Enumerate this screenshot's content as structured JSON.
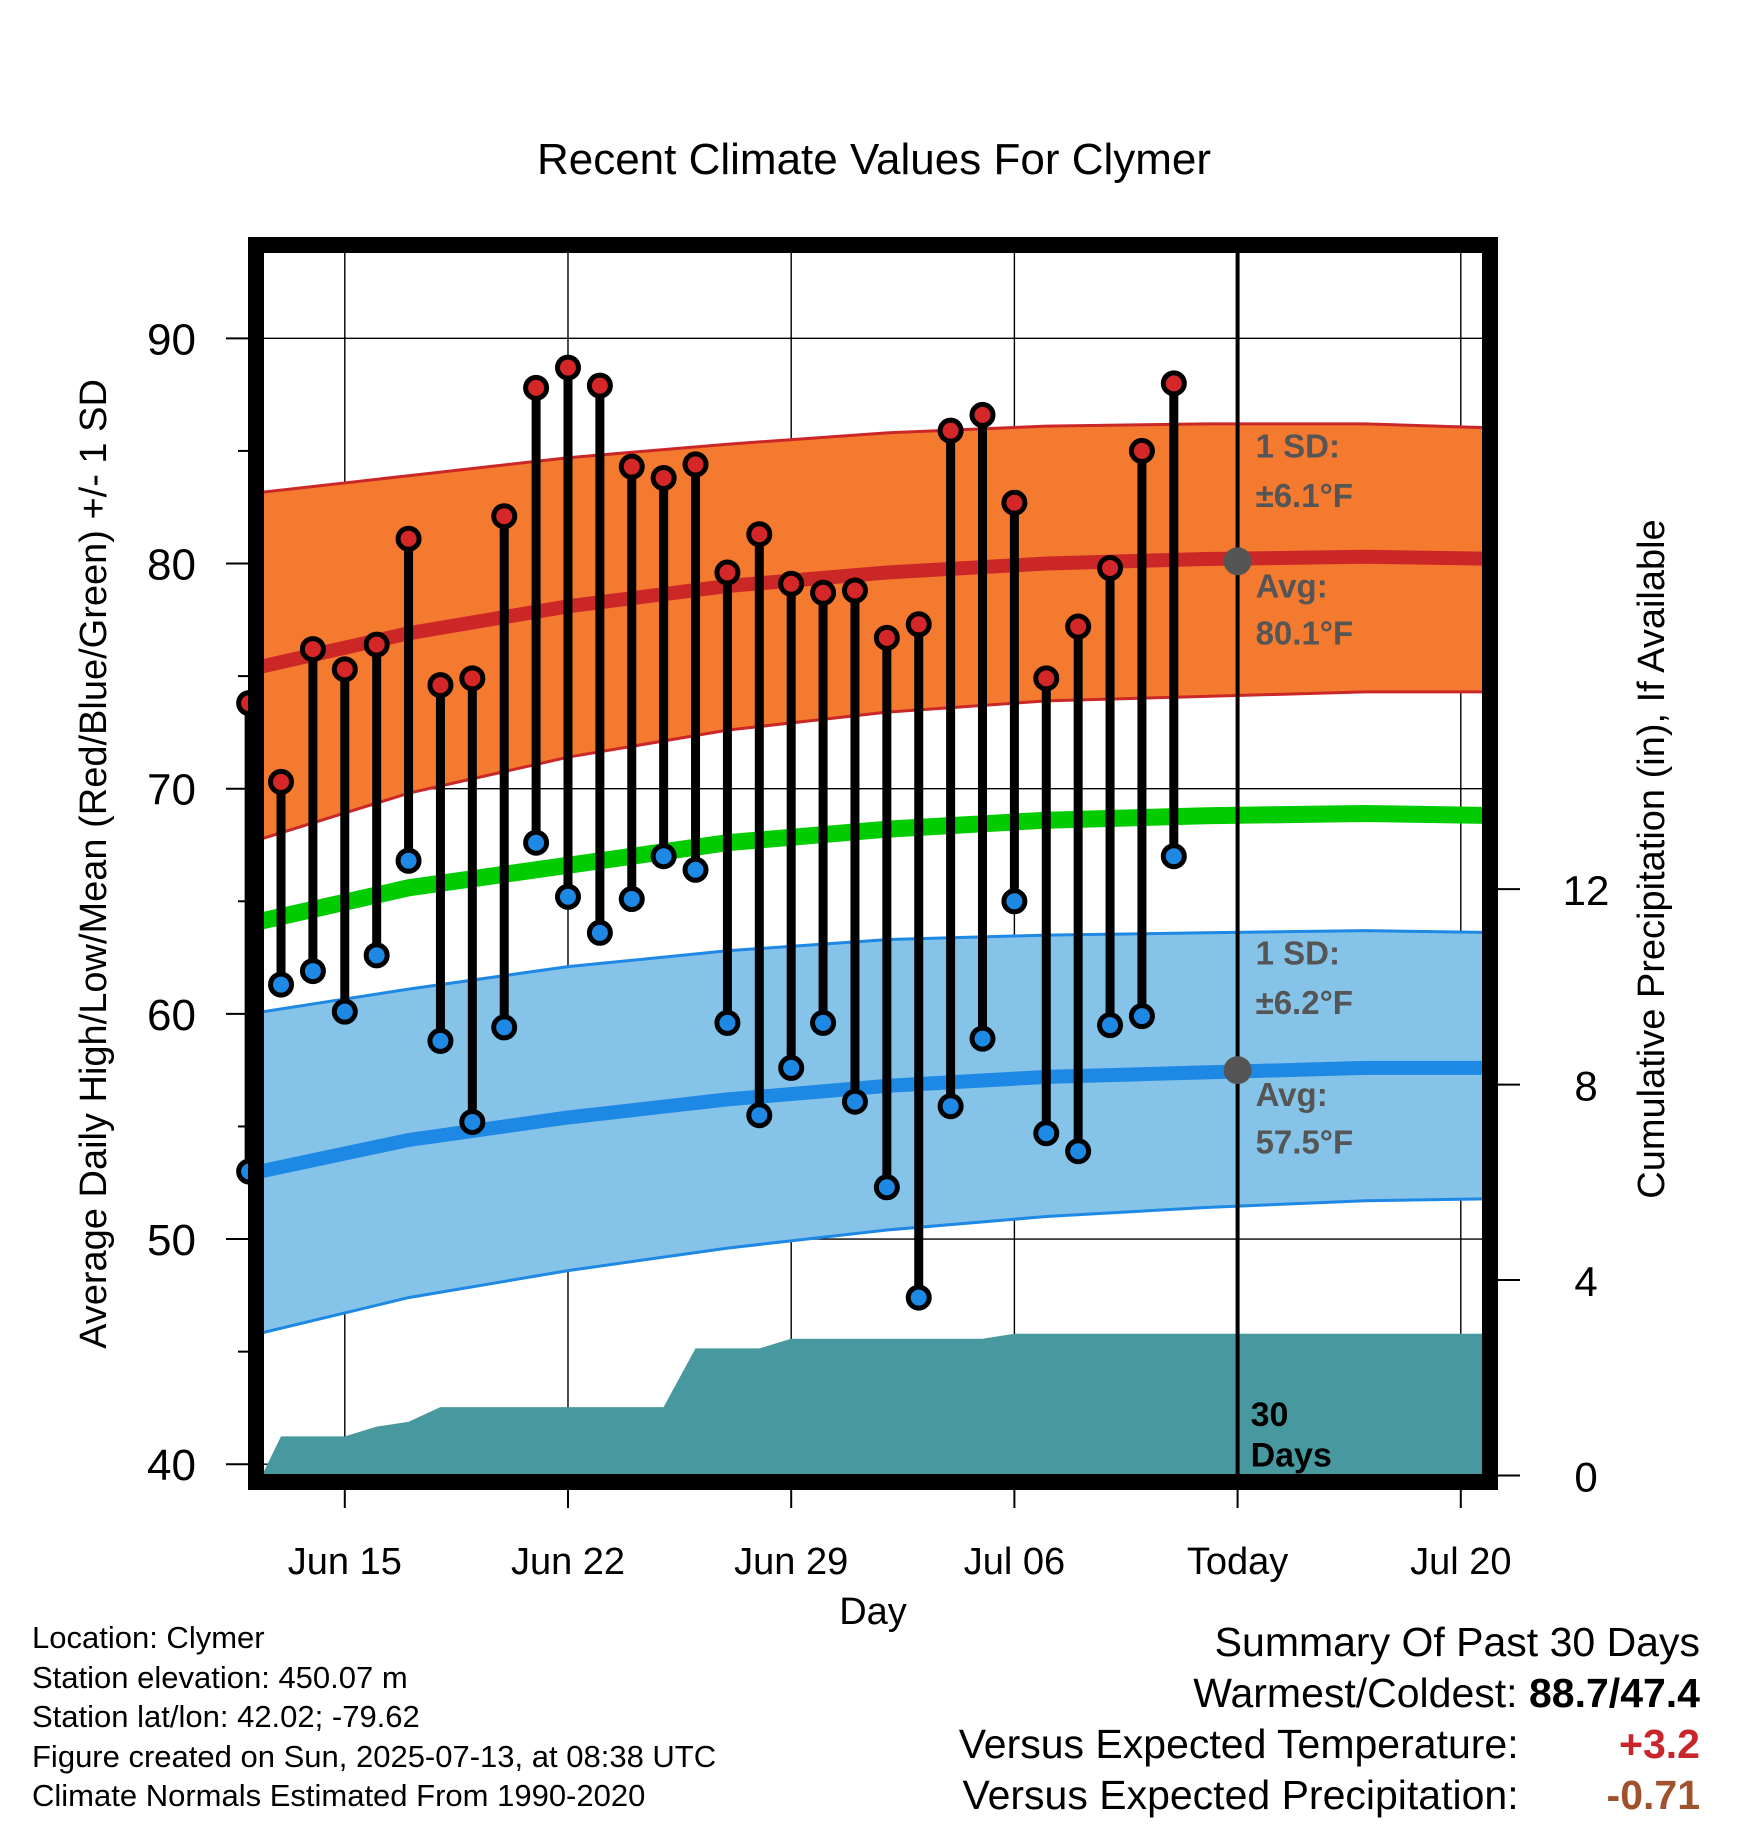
{
  "chart_data": {
    "type": "line",
    "title": "Recent Climate Values For Clymer",
    "xlabel": "Day",
    "ylabel_left": "Average Daily High/Low/Mean (Red/Blue/Green) +/- 1 SD",
    "ylabel_right": "Cumulative Precipitation (in), If Available",
    "x_ticks": [
      {
        "day": 3,
        "label": "Jun 15"
      },
      {
        "day": 10,
        "label": "Jun 22"
      },
      {
        "day": 17,
        "label": "Jun 29"
      },
      {
        "day": 24,
        "label": "Jul 06"
      },
      {
        "day": 31,
        "label": "Today"
      },
      {
        "day": 38,
        "label": "Jul 20"
      }
    ],
    "xlim": [
      -0.6,
      39.7
    ],
    "ylim": [
      39.3,
      94.1
    ],
    "y_ticks": [
      40,
      50,
      60,
      70,
      80,
      90
    ],
    "y_minor_ticks": [
      45,
      55,
      65,
      75,
      85
    ],
    "precip_ticks": [
      0,
      4,
      8,
      12
    ],
    "precip_scale": {
      "temp_at_zero": 39.5,
      "temp_per_inch": 2.17
    },
    "grid": true,
    "today_day": 31,
    "today_label_line1": "30",
    "today_label_line2": "Days",
    "normals": {
      "days": [
        0,
        5,
        10,
        15,
        20,
        25,
        30,
        35,
        39.5
      ],
      "high_avg": [
        75.3,
        76.9,
        78.1,
        79.0,
        79.6,
        80.0,
        80.2,
        80.3,
        80.2
      ],
      "high_upper": [
        83.1,
        83.9,
        84.7,
        85.3,
        85.8,
        86.1,
        86.2,
        86.2,
        86.0
      ],
      "high_lower": [
        67.6,
        69.8,
        71.4,
        72.6,
        73.4,
        73.9,
        74.1,
        74.3,
        74.3
      ],
      "low_avg": [
        52.9,
        54.4,
        55.4,
        56.2,
        56.8,
        57.2,
        57.4,
        57.6,
        57.6
      ],
      "low_upper": [
        60.0,
        61.1,
        62.1,
        62.8,
        63.3,
        63.5,
        63.6,
        63.7,
        63.6
      ],
      "low_lower": [
        45.7,
        47.4,
        48.6,
        49.6,
        50.4,
        51.0,
        51.4,
        51.7,
        51.8
      ],
      "mean": [
        64.0,
        65.6,
        66.6,
        67.6,
        68.2,
        68.6,
        68.8,
        68.9,
        68.8
      ]
    },
    "annotations": {
      "high_sd_line1": "1 SD:",
      "high_sd_line2": "±6.1°F",
      "high_avg_line1": "Avg:",
      "high_avg_line2": "80.1°F",
      "high_avg_value": 80.1,
      "low_sd_line1": "1 SD:",
      "low_sd_line2": "±6.2°F",
      "low_avg_line1": "Avg:",
      "low_avg_line2": "57.5°F",
      "low_avg_value": 57.5
    },
    "series": [
      {
        "name": "High",
        "color": "#d62728",
        "days": [
          0,
          1,
          2,
          3,
          4,
          5,
          6,
          7,
          8,
          9,
          10,
          11,
          12,
          13,
          14,
          15,
          16,
          17,
          18,
          19,
          20,
          21,
          22,
          23,
          24,
          25,
          26,
          27,
          28,
          29,
          30
        ],
        "values": [
          73.8,
          70.3,
          76.2,
          75.3,
          76.4,
          81.1,
          74.6,
          74.9,
          82.1,
          87.8,
          88.7,
          87.9,
          84.3,
          83.8,
          84.4,
          79.6,
          81.3,
          79.1,
          78.7,
          78.8,
          76.7,
          77.3,
          85.9,
          86.6,
          82.7,
          74.9,
          77.2,
          79.8,
          85.0,
          88.0,
          null
        ]
      },
      {
        "name": "Low",
        "color": "#1e88e5",
        "days": [
          0,
          1,
          2,
          3,
          4,
          5,
          6,
          7,
          8,
          9,
          10,
          11,
          12,
          13,
          14,
          15,
          16,
          17,
          18,
          19,
          20,
          21,
          22,
          23,
          24,
          25,
          26,
          27,
          28,
          29,
          30
        ],
        "values": [
          53.0,
          61.3,
          61.9,
          60.1,
          62.6,
          66.8,
          58.8,
          55.2,
          59.4,
          67.6,
          65.2,
          63.6,
          65.1,
          67.0,
          66.4,
          59.6,
          55.5,
          57.6,
          59.6,
          56.1,
          52.3,
          47.4,
          55.9,
          58.9,
          65.0,
          54.7,
          53.9,
          59.5,
          59.9,
          67.0,
          null
        ]
      }
    ],
    "precip": {
      "days": [
        0.4,
        1.0,
        2.0,
        3.0,
        4.0,
        5.0,
        6.0,
        7.0,
        8.0,
        9.0,
        10.0,
        11.0,
        12.0,
        13.0,
        14.0,
        15.0,
        16.0,
        17.0,
        18.0,
        19.0,
        20.0,
        21.0,
        22.0,
        23.0,
        24.0,
        25.0,
        30.0,
        35.0,
        39.7
      ],
      "values": [
        0.0,
        0.8,
        0.8,
        0.8,
        1.0,
        1.1,
        1.4,
        1.4,
        1.4,
        1.4,
        1.4,
        1.4,
        1.4,
        1.4,
        2.6,
        2.6,
        2.6,
        2.8,
        2.8,
        2.8,
        2.8,
        2.8,
        2.8,
        2.8,
        2.9,
        2.9,
        2.9,
        2.9,
        2.9
      ]
    }
  },
  "info": {
    "location": "Location: Clymer",
    "elevation": "Station elevation: 450.07 m",
    "latlon": "Station lat/lon: 42.02; -79.62",
    "created": "Figure created on Sun, 2025-07-13, at 08:38 UTC",
    "normals": "Climate Normals Estimated From 1990-2020"
  },
  "summary": {
    "title": "Summary Of Past 30 Days",
    "warmest_label": "Warmest/Coldest:",
    "warmest_value": "88.7",
    "coldest_value": "47.4",
    "temp_label": "Versus Expected Temperature:",
    "temp_value": "+3.2",
    "temp_color": "#c8262b",
    "precip_label": "Versus Expected Precipitation:",
    "precip_value": "-0.71",
    "precip_color": "#a0522d"
  },
  "colors": {
    "high_band": "#f47a30",
    "high_line": "#cc2727",
    "low_band": "#86c3e8",
    "low_line": "#1e88e5",
    "mean_line": "#00cc00",
    "precip": "#48999f",
    "annotation": "#555555",
    "high_dot": "#d62728",
    "low_dot": "#1e88e5"
  }
}
